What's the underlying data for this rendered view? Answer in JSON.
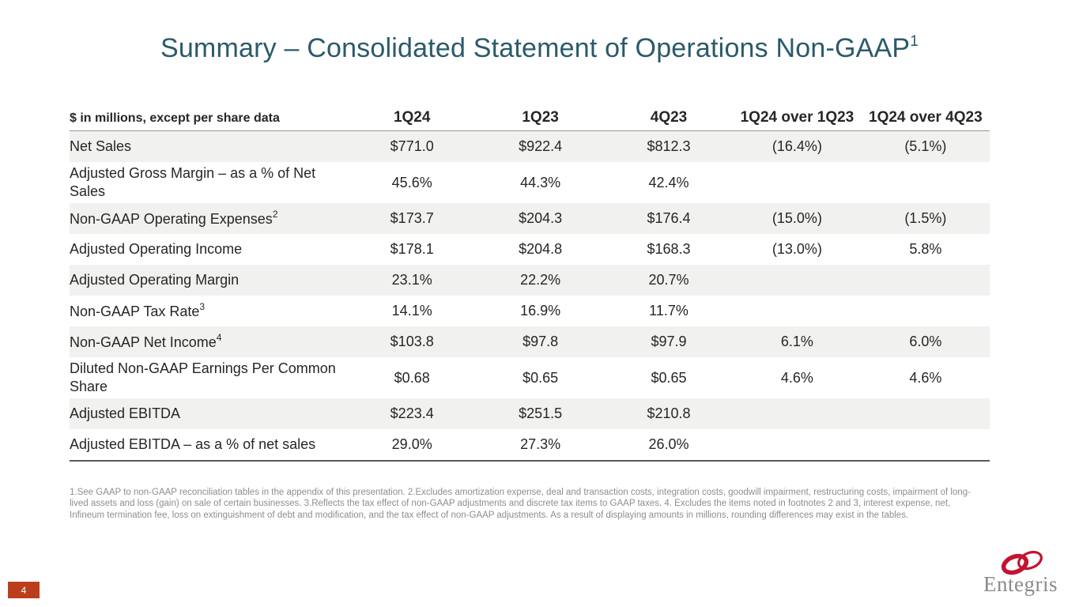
{
  "slide": {
    "title": "Summary – Consolidated Statement of Operations Non-GAAP",
    "title_sup": "1",
    "page_number": "4"
  },
  "table": {
    "header": {
      "label": "$ in millions, except per share data",
      "columns": [
        "1Q24",
        "1Q23",
        "4Q23",
        "1Q24 over 1Q23",
        "1Q24 over 4Q23"
      ]
    },
    "rows": [
      {
        "label": "Net Sales",
        "sup": "",
        "values": [
          "$771.0",
          "$922.4",
          "$812.3",
          "(16.4%)",
          "(5.1%)"
        ]
      },
      {
        "label": "Adjusted Gross Margin – as a % of Net Sales",
        "sup": "",
        "values": [
          "45.6%",
          "44.3%",
          "42.4%",
          "",
          ""
        ]
      },
      {
        "label": "Non-GAAP Operating Expenses",
        "sup": "2",
        "values": [
          "$173.7",
          "$204.3",
          "$176.4",
          "(15.0%)",
          "(1.5%)"
        ]
      },
      {
        "label": "Adjusted Operating Income",
        "sup": "",
        "values": [
          "$178.1",
          "$204.8",
          "$168.3",
          "(13.0%)",
          "5.8%"
        ]
      },
      {
        "label": "Adjusted Operating Margin",
        "sup": "",
        "values": [
          "23.1%",
          "22.2%",
          "20.7%",
          "",
          ""
        ]
      },
      {
        "label": "Non-GAAP Tax Rate",
        "sup": "3",
        "values": [
          "14.1%",
          "16.9%",
          "11.7%",
          "",
          ""
        ]
      },
      {
        "label": "Non-GAAP Net Income",
        "sup": "4",
        "values": [
          "$103.8",
          "$97.8",
          "$97.9",
          "6.1%",
          "6.0%"
        ]
      },
      {
        "label": "Diluted Non-GAAP Earnings Per Common Share",
        "sup": "",
        "values": [
          "$0.68",
          "$0.65",
          "$0.65",
          "4.6%",
          "4.6%"
        ]
      },
      {
        "label": "Adjusted EBITDA",
        "sup": "",
        "values": [
          "$223.4",
          "$251.5",
          "$210.8",
          "",
          ""
        ]
      },
      {
        "label": "Adjusted EBITDA – as a % of net sales",
        "sup": "",
        "values": [
          "29.0%",
          "27.3%",
          "26.0%",
          "",
          ""
        ]
      }
    ]
  },
  "footnotes": "1.See GAAP to non-GAAP reconciliation tables in the appendix of this presentation. 2.Excludes amortization expense, deal and transaction costs, integration costs, goodwill impairment, restructuring costs, impairment of long-lived assets and loss (gain) on sale of certain businesses. 3.Reflects the tax effect of non-GAAP adjustments and discrete tax items to GAAP taxes. 4. Excludes the items noted in footnotes 2 and 3, interest expense, net, Infineum termination fee, loss on extinguishment of debt and modification, and the tax effect of non-GAAP adjustments. As a result of displaying amounts in millions, rounding differences may exist in the tables.",
  "logo": {
    "text": "Entegris"
  },
  "colors": {
    "title_teal": "#2A5A6B",
    "stripe_gray": "#F1F1EF",
    "footnote_gray": "#8E8E88",
    "badge_red": "#BC3D1C",
    "logo_red": "#C41230",
    "logo_text_gray": "#8A8A8A"
  }
}
